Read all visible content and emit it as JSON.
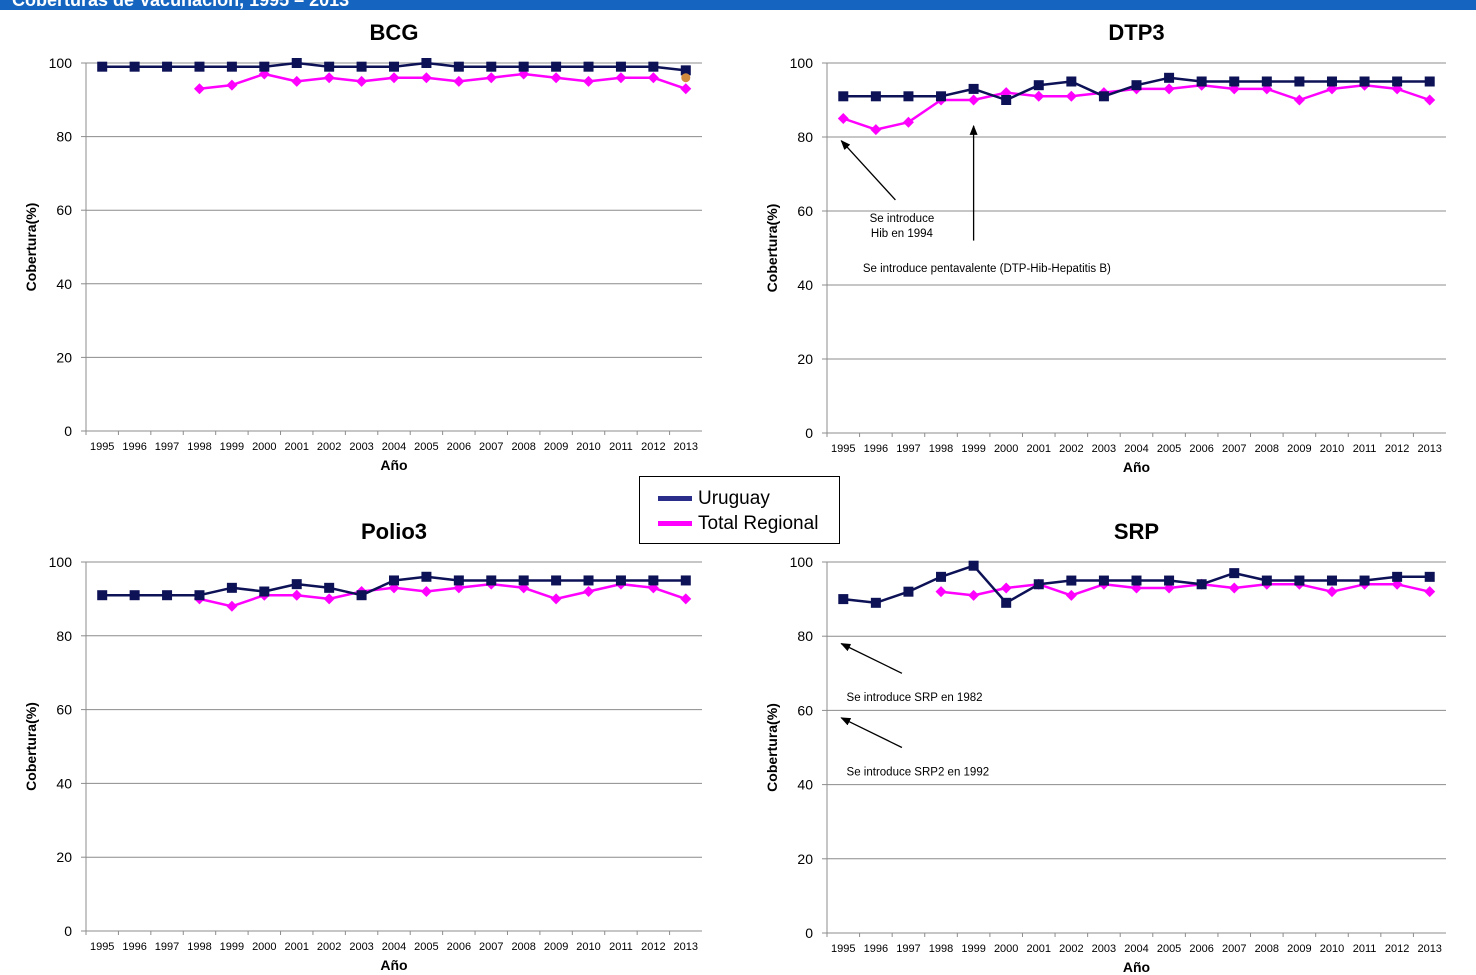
{
  "banner": {
    "title": "Coberturas de Vacunación, 1995 – 2013"
  },
  "legend": [
    {
      "label": "Uruguay",
      "color": "#1a1a6b"
    },
    {
      "label": "Total Regional",
      "color": "#ff00ff"
    }
  ],
  "chart_data": [
    {
      "type": "line",
      "title": "BCG",
      "xlabel": "Año",
      "ylabel": "Cobertura(%)",
      "ylim": [
        0,
        100
      ],
      "yticks": [
        0,
        20,
        40,
        60,
        80,
        100
      ],
      "grid": true,
      "x": [
        1995,
        1996,
        1997,
        1998,
        1999,
        2000,
        2001,
        2002,
        2003,
        2004,
        2005,
        2006,
        2007,
        2008,
        2009,
        2010,
        2011,
        2012,
        2013
      ],
      "series": [
        {
          "name": "Uruguay",
          "color": "#0d1156",
          "marker": "square",
          "values": [
            99,
            99,
            99,
            99,
            99,
            99,
            100,
            99,
            99,
            99,
            100,
            99,
            99,
            99,
            99,
            99,
            99,
            99,
            98
          ]
        },
        {
          "name": "Total Regional",
          "color": "#ff00ff",
          "marker": "diamond",
          "values": [
            null,
            null,
            null,
            93,
            94,
            97,
            95,
            96,
            95,
            96,
            96,
            95,
            96,
            97,
            96,
            95,
            96,
            96,
            93
          ]
        }
      ],
      "extra_points": [
        {
          "x": 2013,
          "y": 96,
          "color": "#d28a3c"
        }
      ],
      "annotations": []
    },
    {
      "type": "line",
      "title": "DTP3",
      "xlabel": "Año",
      "ylabel": "Cobertura(%)",
      "ylim": [
        0,
        100
      ],
      "yticks": [
        0,
        20,
        40,
        60,
        80,
        100
      ],
      "grid": true,
      "x": [
        1995,
        1996,
        1997,
        1998,
        1999,
        2000,
        2001,
        2002,
        2003,
        2004,
        2005,
        2006,
        2007,
        2008,
        2009,
        2010,
        2011,
        2012,
        2013
      ],
      "series": [
        {
          "name": "Uruguay",
          "color": "#0d1156",
          "marker": "square",
          "values": [
            91,
            91,
            91,
            91,
            93,
            90,
            94,
            95,
            91,
            94,
            96,
            95,
            95,
            95,
            95,
            95,
            95,
            95,
            95
          ]
        },
        {
          "name": "Total Regional",
          "color": "#ff00ff",
          "marker": "diamond",
          "values": [
            85,
            82,
            84,
            90,
            90,
            92,
            91,
            91,
            92,
            93,
            93,
            94,
            93,
            93,
            90,
            93,
            94,
            93,
            90
          ]
        }
      ],
      "extra_points": [],
      "annotations": [
        {
          "lines": [
            "Se introduce",
            "Hib en 1994"
          ],
          "arrow_to": [
            1995,
            79
          ],
          "arrow_from": [
            1996.6,
            63
          ],
          "text_at": [
            1996.8,
            57
          ],
          "anchor": "middle"
        },
        {
          "lines": [
            "Se introduce pentavalente (DTP-Hib-Hepatitis B)"
          ],
          "arrow_to": [
            1999.0,
            83
          ],
          "arrow_from": [
            1999.0,
            52
          ],
          "text_at": [
            1995.6,
            43.5
          ],
          "anchor": "start"
        }
      ]
    },
    {
      "type": "line",
      "title": "Polio3",
      "xlabel": "Año",
      "ylabel": "Cobertura(%)",
      "ylim": [
        0,
        100
      ],
      "yticks": [
        0,
        20,
        40,
        60,
        80,
        100
      ],
      "grid": true,
      "x": [
        1995,
        1996,
        1997,
        1998,
        1999,
        2000,
        2001,
        2002,
        2003,
        2004,
        2005,
        2006,
        2007,
        2008,
        2009,
        2010,
        2011,
        2012,
        2013
      ],
      "series": [
        {
          "name": "Uruguay",
          "color": "#0d1156",
          "marker": "square",
          "values": [
            91,
            91,
            91,
            91,
            93,
            92,
            94,
            93,
            91,
            95,
            96,
            95,
            95,
            95,
            95,
            95,
            95,
            95,
            95
          ]
        },
        {
          "name": "Total Regional",
          "color": "#ff00ff",
          "marker": "diamond",
          "values": [
            null,
            null,
            null,
            90,
            88,
            91,
            91,
            90,
            92,
            93,
            92,
            93,
            94,
            93,
            90,
            92,
            94,
            93,
            90
          ]
        }
      ],
      "extra_points": [],
      "annotations": []
    },
    {
      "type": "line",
      "title": "SRP",
      "xlabel": "Año",
      "ylabel": "Cobertura(%)",
      "ylim": [
        0,
        100
      ],
      "yticks": [
        0,
        20,
        40,
        60,
        80,
        100
      ],
      "grid": true,
      "x": [
        1995,
        1996,
        1997,
        1998,
        1999,
        2000,
        2001,
        2002,
        2003,
        2004,
        2005,
        2006,
        2007,
        2008,
        2009,
        2010,
        2011,
        2012,
        2013
      ],
      "series": [
        {
          "name": "Uruguay",
          "color": "#0d1156",
          "marker": "square",
          "values": [
            90,
            89,
            92,
            96,
            99,
            89,
            94,
            95,
            95,
            95,
            95,
            94,
            97,
            95,
            95,
            95,
            95,
            96,
            96
          ]
        },
        {
          "name": "Total Regional",
          "color": "#ff00ff",
          "marker": "diamond",
          "values": [
            null,
            null,
            null,
            92,
            91,
            93,
            94,
            91,
            94,
            93,
            93,
            94,
            93,
            94,
            94,
            92,
            94,
            94,
            92
          ]
        }
      ],
      "extra_points": [],
      "annotations": [
        {
          "lines": [
            "Se introduce SRP en 1982"
          ],
          "arrow_to": [
            1995,
            78
          ],
          "arrow_from": [
            1996.8,
            70
          ],
          "text_at": [
            1995.1,
            62.5
          ],
          "anchor": "start"
        },
        {
          "lines": [
            "Se introduce SRP2 en 1992"
          ],
          "arrow_to": [
            1995,
            58
          ],
          "arrow_from": [
            1996.8,
            50
          ],
          "text_at": [
            1995.1,
            42.5
          ],
          "anchor": "start"
        }
      ]
    }
  ]
}
